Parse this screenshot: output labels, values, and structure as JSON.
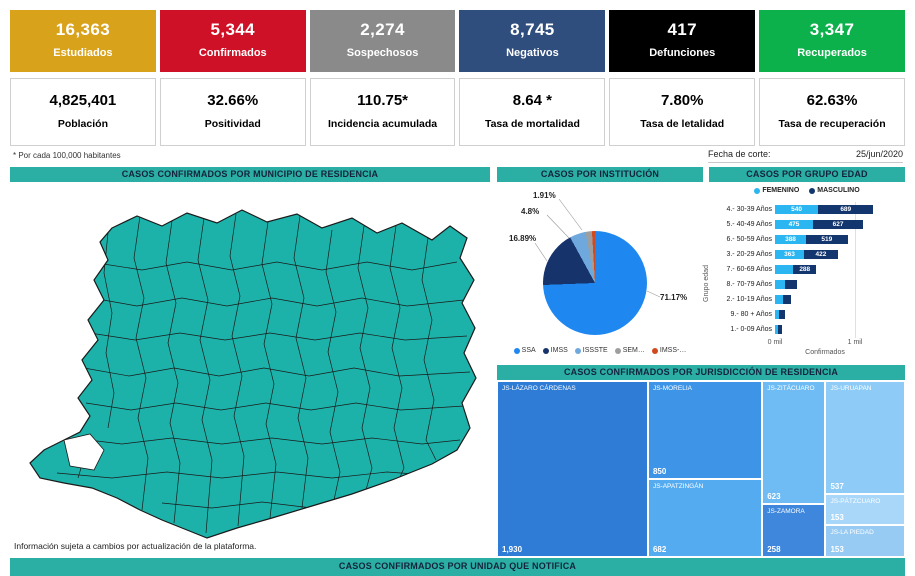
{
  "meta": {
    "footnote": "* Por cada 100,000 habitantes",
    "fecha_corte_label": "Fecha de corte:",
    "fecha_corte_value": "25/jun/2020",
    "map_note": "Información sujeta a cambios por actualización de la plataforma."
  },
  "theme": {
    "section_bar_bg": "#2BAFA5",
    "map_fill": "#1CB2A9",
    "map_stroke": "#1a1a1a"
  },
  "kpi_cards": [
    {
      "value": "16,363",
      "label": "Estudiados",
      "bg": "#D9A21B"
    },
    {
      "value": "5,344",
      "label": "Confirmados",
      "bg": "#CE1126"
    },
    {
      "value": "2,274",
      "label": "Sospechosos",
      "bg": "#8A8A8A"
    },
    {
      "value": "8,745",
      "label": "Negativos",
      "bg": "#2F4E7E"
    },
    {
      "value": "417",
      "label": "Defunciones",
      "bg": "#000000"
    },
    {
      "value": "3,347",
      "label": "Recuperados",
      "bg": "#0DB14B"
    }
  ],
  "stat_cards": [
    {
      "value": "4,825,401",
      "label": "Población"
    },
    {
      "value": "32.66%",
      "label": "Positividad"
    },
    {
      "value": "110.75*",
      "label": "Incidencia acumulada"
    },
    {
      "value": "8.64 *",
      "label": "Tasa de mortalidad"
    },
    {
      "value": "7.80%",
      "label": "Tasa de letalidad"
    },
    {
      "value": "62.63%",
      "label": "Tasa de recuperación"
    }
  ],
  "sections": {
    "municipio": "CASOS CONFIRMADOS POR MUNICIPIO DE RESIDENCIA",
    "institucion": "CASOS POR INSTITUCIÓN",
    "grupo_edad": "CASOS POR GRUPO EDAD",
    "jurisdiccion": "CASOS CONFIRMADOS POR JURISDICCIÓN DE RESIDENCIA",
    "unidad": "CASOS CONFIRMADOS POR UNIDAD QUE NOTIFICA"
  },
  "chart_data": [
    {
      "type": "pie",
      "title": "CASOS POR INSTITUCIÓN",
      "labels": [
        "SSA",
        "IMSS",
        "ISSSTE",
        "SEM…",
        "IMSS-…"
      ],
      "values": [
        71.17,
        16.89,
        4.8,
        1.91,
        0.9
      ],
      "value_labels": [
        "71.17%",
        "16.89%",
        "4.8%",
        "1.91%",
        ""
      ],
      "colors": [
        "#1E88F0",
        "#16336B",
        "#6FA8DC",
        "#9E9E9E",
        "#D0491F"
      ],
      "legend_position": "bottom",
      "note": "smallest slice unlabeled in source; its value is estimated"
    },
    {
      "type": "bar",
      "orientation": "horizontal-stacked",
      "title": "CASOS POR GRUPO EDAD",
      "ylabel": "Grupo edad",
      "xlabel": "Confirmados",
      "x_ticks": [
        "0 mil",
        "1 mil"
      ],
      "xlim": [
        0,
        1250
      ],
      "legend_position": "top",
      "categories": [
        "4.- 30-39 Años",
        "5.- 40-49 Años",
        "6.- 50-59 Años",
        "3.- 20-29 Años",
        "7.- 60-69 Años",
        "8.- 70-79 Años",
        "2.- 10-19 Años",
        "9.- 80 + Años",
        "1.- 0-09 Años"
      ],
      "series": [
        {
          "name": "FEMENINO",
          "color": "#2BB6F2",
          "values": [
            540,
            475,
            388,
            363,
            228,
            120,
            95,
            52,
            38
          ],
          "labels": [
            "540",
            "475",
            "388",
            "363",
            "",
            "",
            "",
            "",
            ""
          ]
        },
        {
          "name": "MASCULINO",
          "color": "#14366E",
          "values": [
            689,
            627,
            519,
            422,
            288,
            158,
            108,
            78,
            45
          ],
          "labels": [
            "689",
            "627",
            "519",
            "422",
            "288",
            "",
            "",
            "",
            ""
          ]
        }
      ]
    },
    {
      "type": "treemap",
      "title": "CASOS CONFIRMADOS POR JURISDICCIÓN DE RESIDENCIA",
      "items": [
        {
          "name": "JS-LÁZARO CÁRDENAS",
          "value": "1,930",
          "color": "#2E7CD6"
        },
        {
          "name": "JS-MORELIA",
          "value": "850",
          "color": "#3E95E8"
        },
        {
          "name": "JS-APATZINGÁN",
          "value": "682",
          "color": "#55ABF0"
        },
        {
          "name": "JS-ZITÁCUARO",
          "value": "623",
          "color": "#6FBCF5"
        },
        {
          "name": "JS-URUAPAN",
          "value": "537",
          "color": "#8ECCF7"
        },
        {
          "name": "JS-ZAMORA",
          "value": "258",
          "color": "#3E87DD"
        },
        {
          "name": "JS-PÁTZCUARO",
          "value": "153",
          "color": "#A9D7FA"
        },
        {
          "name": "JS-LA PIEDAD",
          "value": "153",
          "color": "#97CBF3"
        }
      ]
    }
  ]
}
